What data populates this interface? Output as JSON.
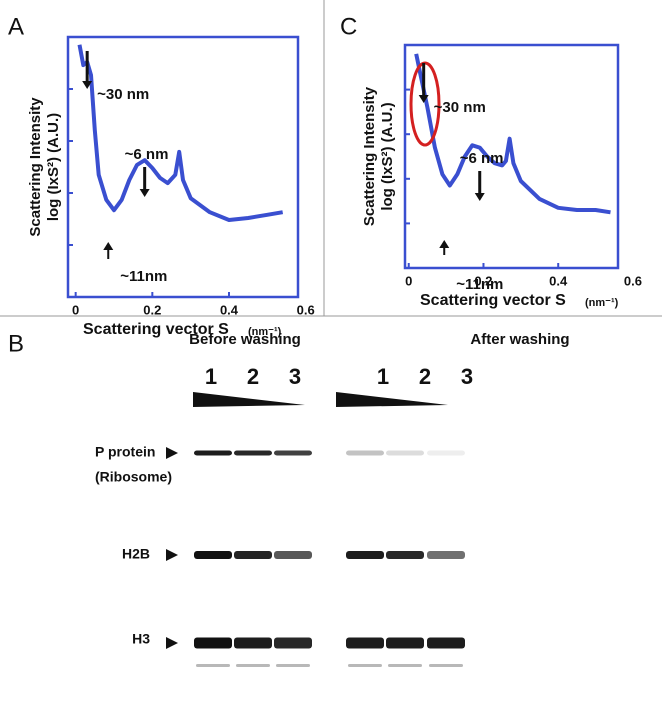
{
  "chart_data": [
    {
      "type": "line",
      "panel_label": "A",
      "y_label_lines": [
        "Scattering Intensity",
        "log (IxS²) (A.U.)"
      ],
      "x_label": "Scattering vector S",
      "x_unit": "(nm⁻¹)",
      "x": [
        0.01,
        0.02,
        0.03,
        0.04,
        0.05,
        0.06,
        0.08,
        0.1,
        0.12,
        0.14,
        0.16,
        0.18,
        0.2,
        0.22,
        0.24,
        0.26,
        0.27,
        0.28,
        0.3,
        0.35,
        0.4,
        0.45,
        0.5,
        0.54
      ],
      "series": [
        {
          "color": "#3a4fd0",
          "values": [
            4.85,
            4.46,
            4.52,
            4.27,
            3.21,
            2.35,
            1.87,
            1.67,
            1.87,
            2.25,
            2.54,
            2.63,
            2.48,
            2.29,
            2.19,
            2.35,
            2.79,
            2.25,
            1.9,
            1.63,
            1.48,
            1.52,
            1.58,
            1.63
          ]
        }
      ],
      "xlim": [
        -0.02,
        0.58
      ],
      "xticks": [
        0,
        0.2,
        0.4,
        0.6
      ],
      "ylim": [
        0,
        5
      ],
      "annotations": [
        "~30 nm",
        "~6 nm",
        "~11nm"
      ]
    },
    {
      "type": "line",
      "panel_label": "C",
      "y_label_lines": [
        "Scattering Intensity",
        "log (IxS²) (A.U.)"
      ],
      "x_label": "Scattering vector S",
      "x_unit": "(nm⁻¹)",
      "x": [
        0.02,
        0.03,
        0.05,
        0.07,
        0.09,
        0.11,
        0.13,
        0.15,
        0.17,
        0.19,
        0.21,
        0.23,
        0.25,
        0.26,
        0.27,
        0.28,
        0.3,
        0.35,
        0.4,
        0.45,
        0.5,
        0.54
      ],
      "series": [
        {
          "color": "#3a4fd0",
          "values": [
            4.8,
            4.4,
            3.6,
            2.7,
            2.1,
            1.85,
            2.1,
            2.5,
            2.75,
            2.7,
            2.5,
            2.35,
            2.3,
            2.4,
            2.9,
            2.35,
            1.95,
            1.55,
            1.35,
            1.3,
            1.3,
            1.25
          ]
        }
      ],
      "xlim": [
        -0.01,
        0.56
      ],
      "xticks": [
        0,
        0.2,
        0.4,
        0.6
      ],
      "ylim": [
        0,
        5
      ],
      "annotations": [
        "~30 nm",
        "~6 nm",
        "~11nm"
      ]
    }
  ],
  "blot": {
    "panel_label": "B",
    "groups": [
      "Before washing",
      "After washing"
    ],
    "lanes": [
      "1",
      "2",
      "3"
    ],
    "rows": [
      [
        "P protein",
        "(Ribosome)"
      ],
      [
        "H2B"
      ],
      [
        "H3"
      ]
    ]
  }
}
